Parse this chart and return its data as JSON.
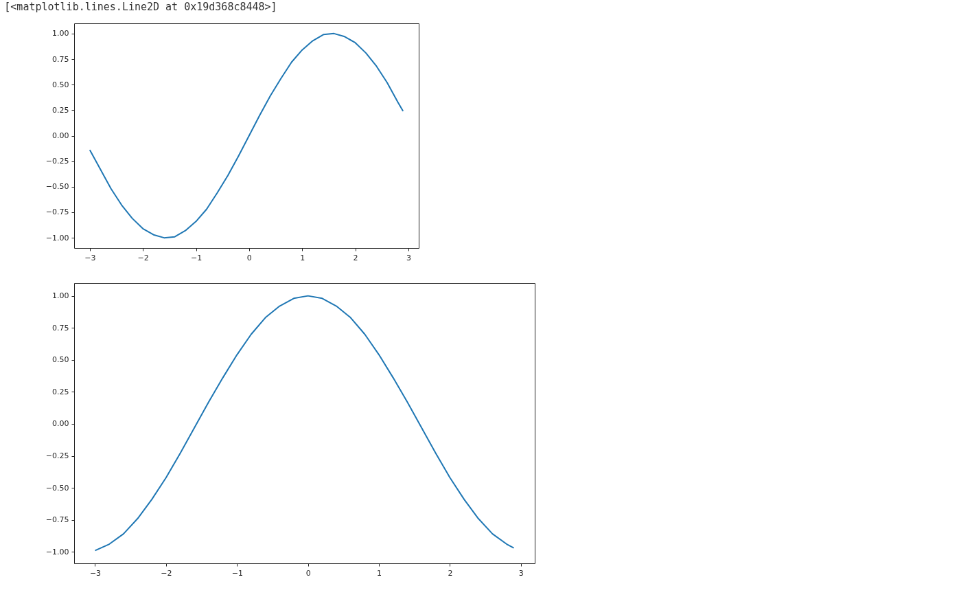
{
  "chart_data": [
    {
      "type": "line",
      "annotations": [
        "[<matplotlib.lines.Line2D at 0x19d368c8448>]"
      ],
      "x": [
        -3,
        -2.8,
        -2.6,
        -2.4,
        -2.2,
        -2.0,
        -1.8,
        -1.6,
        -1.4,
        -1.2,
        -1.0,
        -0.8,
        -0.6,
        -0.4,
        -0.2,
        0,
        0.2,
        0.4,
        0.6,
        0.8,
        1.0,
        1.2,
        1.4,
        1.6,
        1.8,
        2.0,
        2.2,
        2.4,
        2.6,
        2.8,
        2.9
      ],
      "series": [
        {
          "color": "#1f77b4",
          "values": [
            -0.14,
            -0.33,
            -0.52,
            -0.68,
            -0.81,
            -0.91,
            -0.97,
            -1.0,
            -0.99,
            -0.93,
            -0.84,
            -0.72,
            -0.56,
            -0.39,
            -0.2,
            0.0,
            0.2,
            0.39,
            0.56,
            0.72,
            0.84,
            0.93,
            0.99,
            1.0,
            0.97,
            0.91,
            0.81,
            0.68,
            0.52,
            0.33,
            0.24
          ]
        }
      ],
      "xlim": [
        -3.295,
        3.195
      ],
      "xticks": [
        {
          "value": -3,
          "label": "−3"
        },
        {
          "value": -2,
          "label": "−2"
        },
        {
          "value": -1,
          "label": "−1"
        },
        0,
        1,
        2,
        3
      ],
      "ylim": [
        -1.1,
        1.1
      ],
      "yticks": [
        {
          "value": -1,
          "label": "−1.00"
        },
        {
          "value": -0.75,
          "label": "−0.75"
        },
        {
          "value": -0.5,
          "label": "−0.50"
        },
        {
          "value": -0.25,
          "label": "−0.25"
        },
        {
          "value": 0,
          "label": "0.00"
        },
        {
          "value": 0.25,
          "label": "0.25"
        },
        {
          "value": 0.5,
          "label": "0.50"
        },
        {
          "value": 0.75,
          "label": "0.75"
        },
        {
          "value": 1,
          "label": "1.00"
        }
      ],
      "grid": false,
      "marker": "none",
      "line_style": "solid"
    },
    {
      "type": "line",
      "x": [
        -3,
        -2.8,
        -2.6,
        -2.4,
        -2.2,
        -2.0,
        -1.8,
        -1.6,
        -1.4,
        -1.2,
        -1.0,
        -0.8,
        -0.6,
        -0.4,
        -0.2,
        0,
        0.2,
        0.4,
        0.6,
        0.8,
        1.0,
        1.2,
        1.4,
        1.6,
        1.8,
        2.0,
        2.2,
        2.4,
        2.6,
        2.8,
        2.9
      ],
      "series": [
        {
          "color": "#1f77b4",
          "values": [
            -0.99,
            -0.94,
            -0.86,
            -0.74,
            -0.59,
            -0.42,
            -0.23,
            -0.03,
            0.17,
            0.36,
            0.54,
            0.7,
            0.83,
            0.92,
            0.98,
            1.0,
            0.98,
            0.92,
            0.83,
            0.7,
            0.54,
            0.36,
            0.17,
            -0.03,
            -0.23,
            -0.42,
            -0.59,
            -0.74,
            -0.86,
            -0.94,
            -0.97
          ]
        }
      ],
      "xlim": [
        -3.295,
        3.195
      ],
      "xticks": [
        {
          "value": -3,
          "label": "−3"
        },
        {
          "value": -2,
          "label": "−2"
        },
        {
          "value": -1,
          "label": "−1"
        },
        0,
        1,
        2,
        3
      ],
      "ylim": [
        -1.09,
        1.1
      ],
      "yticks": [
        {
          "value": -1,
          "label": "−1.00"
        },
        {
          "value": -0.75,
          "label": "−0.75"
        },
        {
          "value": -0.5,
          "label": "−0.50"
        },
        {
          "value": -0.25,
          "label": "−0.25"
        },
        {
          "value": 0,
          "label": "0.00"
        },
        {
          "value": 0.25,
          "label": "0.25"
        },
        {
          "value": 0.5,
          "label": "0.50"
        },
        {
          "value": 0.75,
          "label": "0.75"
        },
        {
          "value": 1,
          "label": "1.00"
        }
      ],
      "grid": false,
      "marker": "none",
      "line_style": "solid"
    }
  ]
}
